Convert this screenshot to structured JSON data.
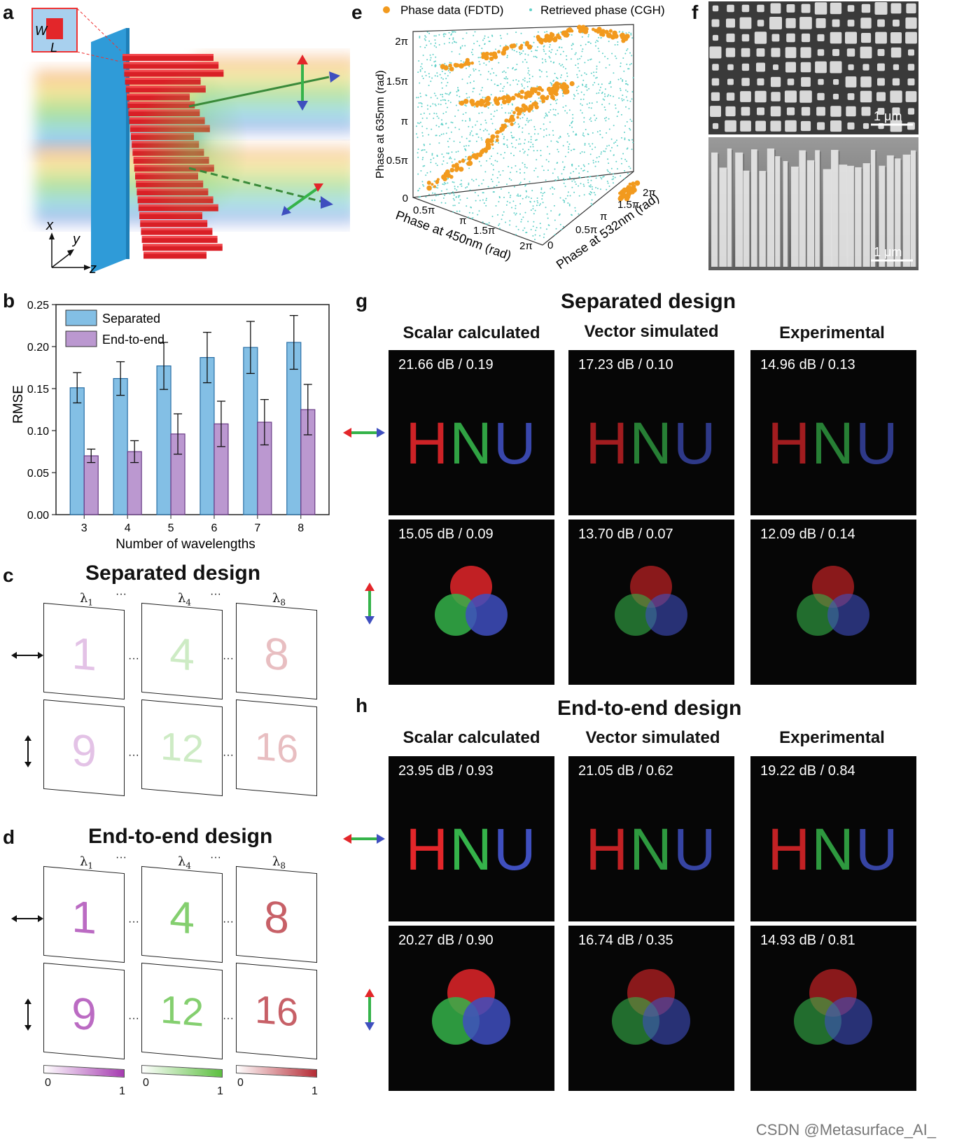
{
  "panel_labels": {
    "a": "a",
    "b": "b",
    "c": "c",
    "d": "d",
    "e": "e",
    "f": "f",
    "g": "g",
    "h": "h"
  },
  "panel_a": {
    "inset_w": "W",
    "inset_l": "L",
    "axis_x": "x",
    "axis_y": "y",
    "axis_z": "z"
  },
  "panel_e": {
    "legend_fdtd": "Phase data (FDTD)",
    "legend_cgh": "Retrieved phase (CGH)",
    "ylabel": "Phase at 635nm (rad)",
    "xlabel": "Phase at 450nm (rad)",
    "zlabel": "Phase at 532nm (rad)",
    "y_ticks": [
      "0",
      "0.5π",
      "π",
      "1.5π",
      "2π"
    ],
    "x_ticks": [
      "0.5π",
      "π",
      "1.5π",
      "2π"
    ],
    "z_ticks": [
      "0",
      "0.5π",
      "π",
      "1.5π",
      "2π"
    ]
  },
  "panel_f": {
    "scale_top": "1 μm",
    "scale_bottom": "1 μm"
  },
  "chart_data": {
    "type": "bar",
    "title": "",
    "xlabel": "Number of wavelengths",
    "ylabel": "RMSE",
    "categories": [
      "3",
      "4",
      "5",
      "6",
      "7",
      "8"
    ],
    "y_ticks": [
      "0.00",
      "0.05",
      "0.10",
      "0.15",
      "0.20",
      "0.25"
    ],
    "ylim": [
      0,
      0.25
    ],
    "legend_position": "top-left",
    "series": [
      {
        "name": "Separated",
        "values": [
          0.151,
          0.162,
          0.177,
          0.187,
          0.199,
          0.205
        ],
        "errors": [
          0.018,
          0.02,
          0.028,
          0.03,
          0.031,
          0.032
        ],
        "color": "#5aa9dc"
      },
      {
        "name": "End-to-end",
        "values": [
          0.07,
          0.075,
          0.096,
          0.108,
          0.11,
          0.125
        ],
        "errors": [
          0.008,
          0.013,
          0.024,
          0.027,
          0.027,
          0.03
        ],
        "color": "#a476c0"
      }
    ]
  },
  "panel_c": {
    "title": "Separated design",
    "lambdas": [
      "λ",
      "λ",
      "λ"
    ],
    "lambda_subs": [
      "1",
      "4",
      "8"
    ],
    "digits_row1": [
      "1",
      "4",
      "8"
    ],
    "digits_row2": [
      "9",
      "12",
      "16"
    ]
  },
  "panel_d": {
    "title": "End-to-end design",
    "lambdas": [
      "λ",
      "λ",
      "λ"
    ],
    "lambda_subs": [
      "1",
      "4",
      "8"
    ],
    "digits_row1": [
      "1",
      "4",
      "8"
    ],
    "digits_row2": [
      "9",
      "12",
      "16"
    ],
    "cbar_min": [
      "0",
      "0",
      "0"
    ],
    "cbar_max": [
      "1",
      "1",
      "1"
    ]
  },
  "panel_g": {
    "title": "Separated design",
    "cols": [
      "Scalar calculated",
      "Vector simulated",
      "Experimental"
    ],
    "hnu_text": [
      "H",
      "N",
      "U"
    ],
    "row1": [
      "21.66 dB / 0.19",
      "17.23 dB / 0.10",
      "14.96 dB / 0.13"
    ],
    "row2": [
      "15.05 dB / 0.09",
      "13.70 dB / 0.07",
      "12.09 dB / 0.14"
    ]
  },
  "panel_h": {
    "title": "End-to-end design",
    "cols": [
      "Scalar calculated",
      "Vector simulated",
      "Experimental"
    ],
    "hnu_text": [
      "H",
      "N",
      "U"
    ],
    "row1": [
      "23.95 dB / 0.93",
      "21.05 dB / 0.62",
      "19.22 dB / 0.84"
    ],
    "row2": [
      "20.27 dB / 0.90",
      "16.74 dB / 0.35",
      "14.93 dB / 0.81"
    ]
  },
  "colors": {
    "red": "#e3262a",
    "green": "#35b34a",
    "blue": "#3f4fbf",
    "teal": "#5fd0c8",
    "orange": "#f29a1e",
    "sem_bg": "#3a3a3a"
  },
  "watermark": "CSDN @Metasurface_AI_"
}
